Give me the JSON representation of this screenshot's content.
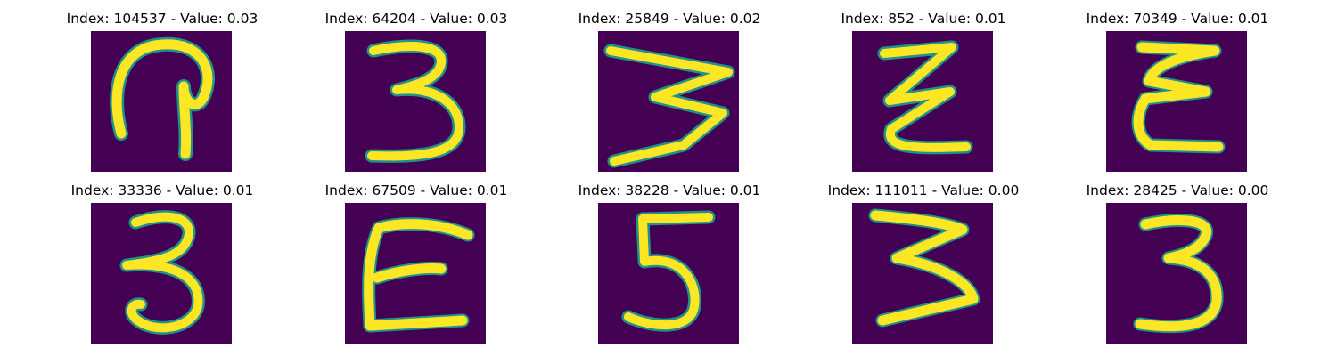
{
  "figure": {
    "panels": [
      {
        "title": "Index: 104537 - Value: 0.03",
        "digit_shape": "looped-2-like"
      },
      {
        "title": "Index: 64204 - Value: 0.03",
        "digit_shape": "3"
      },
      {
        "title": "Index: 25849 - Value: 0.02",
        "digit_shape": "rotated-3-zigzag"
      },
      {
        "title": "Index: 852 - Value: 0.01",
        "digit_shape": "zigzag-3"
      },
      {
        "title": "Index: 70349 - Value: 0.01",
        "digit_shape": "epsilon-3"
      },
      {
        "title": "Index: 33336 - Value: 0.01",
        "digit_shape": "3"
      },
      {
        "title": "Index: 67509 - Value: 0.01",
        "digit_shape": "E"
      },
      {
        "title": "Index: 38228 - Value: 0.01",
        "digit_shape": "5"
      },
      {
        "title": "Index: 111011 - Value: 0.00",
        "digit_shape": "3"
      },
      {
        "title": "Index: 28425 - Value: 0.00",
        "digit_shape": "3"
      }
    ],
    "colors": {
      "background": "#440154",
      "stroke": "#fde725",
      "edge": "#21918c"
    }
  }
}
